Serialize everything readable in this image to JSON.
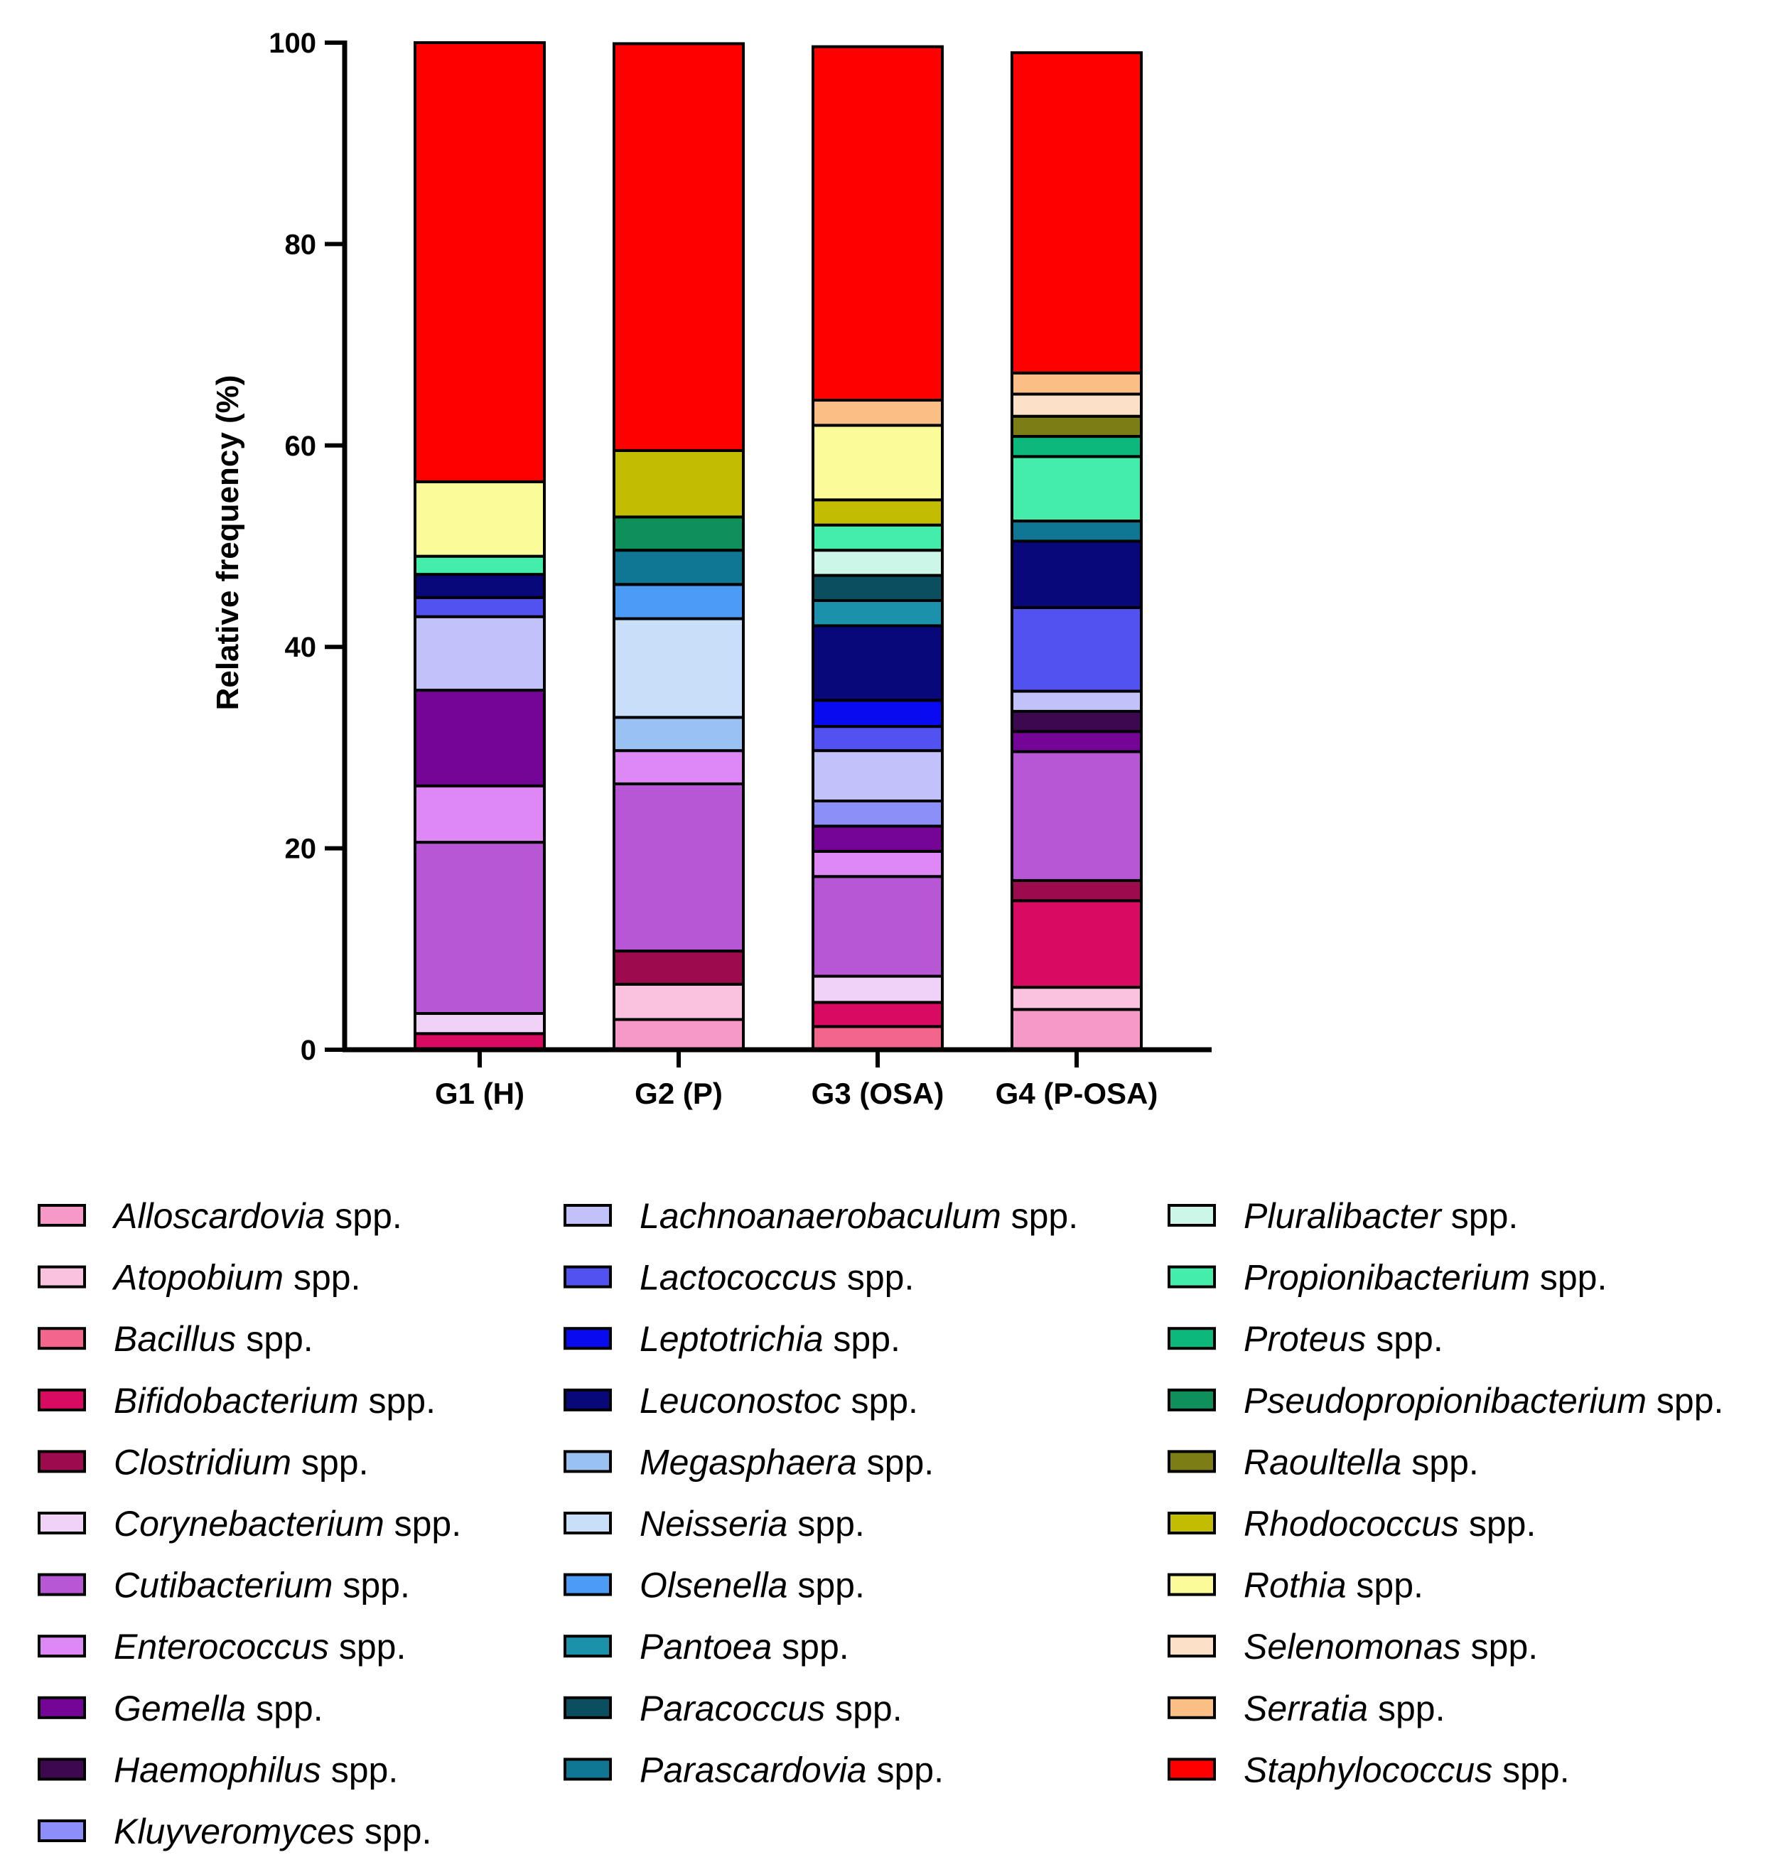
{
  "chart_data": {
    "type": "bar",
    "stacked": true,
    "title": "",
    "xlabel": "",
    "ylabel": "Relative frequency (%)",
    "ylim": [
      0,
      100
    ],
    "yticks": [
      0,
      20,
      40,
      60,
      80,
      100
    ],
    "categories": [
      "G1 (H)",
      "G2 (P)",
      "G3 (OSA)",
      "G4 (P-OSA)"
    ],
    "legend_position": "bottom",
    "series": [
      {
        "name": "Alloscardovia",
        "suffix": "spp.",
        "color": "#F799C8",
        "values": [
          0,
          3.0,
          0,
          4.0
        ]
      },
      {
        "name": "Atopobium",
        "suffix": "spp.",
        "color": "#FBC2E0",
        "values": [
          0,
          3.5,
          0,
          2.2
        ]
      },
      {
        "name": "Bacillus",
        "suffix": "spp.",
        "color": "#F2668C",
        "values": [
          0,
          0,
          2.3,
          0
        ]
      },
      {
        "name": "Bifidobacterium",
        "suffix": "spp.",
        "color": "#D90A61",
        "values": [
          1.6,
          0,
          2.4,
          8.6
        ]
      },
      {
        "name": "Clostridium",
        "suffix": "spp.",
        "color": "#9E0A4E",
        "values": [
          0,
          3.3,
          0,
          2.0
        ]
      },
      {
        "name": "Corynebacterium",
        "suffix": "spp.",
        "color": "#F0D2F7",
        "values": [
          2.0,
          0,
          2.6,
          0
        ]
      },
      {
        "name": "Cutibacterium",
        "suffix": "spp.",
        "color": "#B857D6",
        "values": [
          17.0,
          16.6,
          9.9,
          12.8
        ]
      },
      {
        "name": "Enterococcus",
        "suffix": "spp.",
        "color": "#DD88F4",
        "values": [
          5.6,
          3.3,
          2.5,
          0
        ]
      },
      {
        "name": "Gemella",
        "suffix": "spp.",
        "color": "#750597",
        "values": [
          9.5,
          0,
          2.5,
          2.0
        ]
      },
      {
        "name": "Haemophilus",
        "suffix": "spp.",
        "color": "#3D0850",
        "values": [
          0,
          0,
          0,
          2.0
        ]
      },
      {
        "name": "Kluyveromyces",
        "suffix": "spp.",
        "color": "#8C8FF7",
        "values": [
          0,
          0,
          2.5,
          0
        ]
      },
      {
        "name": "Lachnoanaerobaculum",
        "suffix": "spp.",
        "color": "#C2C2FB",
        "values": [
          7.3,
          0,
          5.0,
          2.0
        ]
      },
      {
        "name": "Lactococcus",
        "suffix": "spp.",
        "color": "#5252F0",
        "values": [
          1.9,
          0,
          2.4,
          8.3
        ]
      },
      {
        "name": "Leptotrichia",
        "suffix": "spp.",
        "color": "#0A0AF0",
        "values": [
          0,
          0,
          2.6,
          0
        ]
      },
      {
        "name": "Leuconostoc",
        "suffix": "spp.",
        "color": "#08087A",
        "values": [
          2.3,
          0,
          7.4,
          6.6
        ]
      },
      {
        "name": "Megasphaera",
        "suffix": "spp.",
        "color": "#99C2F2",
        "values": [
          0,
          3.3,
          0,
          0
        ]
      },
      {
        "name": "Neisseria",
        "suffix": "spp.",
        "color": "#C8DEF9",
        "values": [
          0,
          9.8,
          0,
          0
        ]
      },
      {
        "name": "Olsenella",
        "suffix": "spp.",
        "color": "#4C9BF5",
        "values": [
          0,
          3.4,
          0,
          0
        ]
      },
      {
        "name": "Pantoea",
        "suffix": "spp.",
        "color": "#1B91AC",
        "values": [
          0,
          0,
          2.5,
          0
        ]
      },
      {
        "name": "Paracoccus",
        "suffix": "spp.",
        "color": "#0B4E60",
        "values": [
          0,
          0,
          2.5,
          0
        ]
      },
      {
        "name": "Parascardovia",
        "suffix": "spp.",
        "color": "#0F7693",
        "values": [
          0,
          3.4,
          0,
          2.0
        ]
      },
      {
        "name": "Pluralibacter",
        "suffix": "spp.",
        "color": "#CCF7E8",
        "values": [
          0,
          0,
          2.5,
          0
        ]
      },
      {
        "name": "Propionibacterium",
        "suffix": "spp.",
        "color": "#44EEAA",
        "values": [
          1.8,
          0,
          2.5,
          6.4
        ]
      },
      {
        "name": "Proteus",
        "suffix": "spp.",
        "color": "#0DB87C",
        "values": [
          0,
          0,
          0,
          2.0
        ]
      },
      {
        "name": "Pseudopropionibacterium",
        "suffix": "spp.",
        "color": "#0F8F5A",
        "values": [
          0,
          3.3,
          0,
          0
        ]
      },
      {
        "name": "Raoultella",
        "suffix": "spp.",
        "color": "#7D7D16",
        "values": [
          0,
          0,
          0,
          2.0
        ]
      },
      {
        "name": "Rhodococcus",
        "suffix": "spp.",
        "color": "#C2BD00",
        "values": [
          0,
          6.6,
          2.5,
          0
        ]
      },
      {
        "name": "Rothia",
        "suffix": "spp.",
        "color": "#FBFB99",
        "values": [
          7.4,
          0,
          7.4,
          0
        ]
      },
      {
        "name": "Selenomonas",
        "suffix": "spp.",
        "color": "#FDE0C8",
        "values": [
          0,
          0,
          0,
          2.2
        ]
      },
      {
        "name": "Serratia",
        "suffix": "spp.",
        "color": "#FBBF85",
        "values": [
          0,
          0,
          2.5,
          2.1
        ]
      },
      {
        "name": "Staphylococcus",
        "suffix": "spp.",
        "color": "#FF0000",
        "values": [
          43.6,
          40.4,
          35.1,
          31.8
        ]
      }
    ]
  }
}
